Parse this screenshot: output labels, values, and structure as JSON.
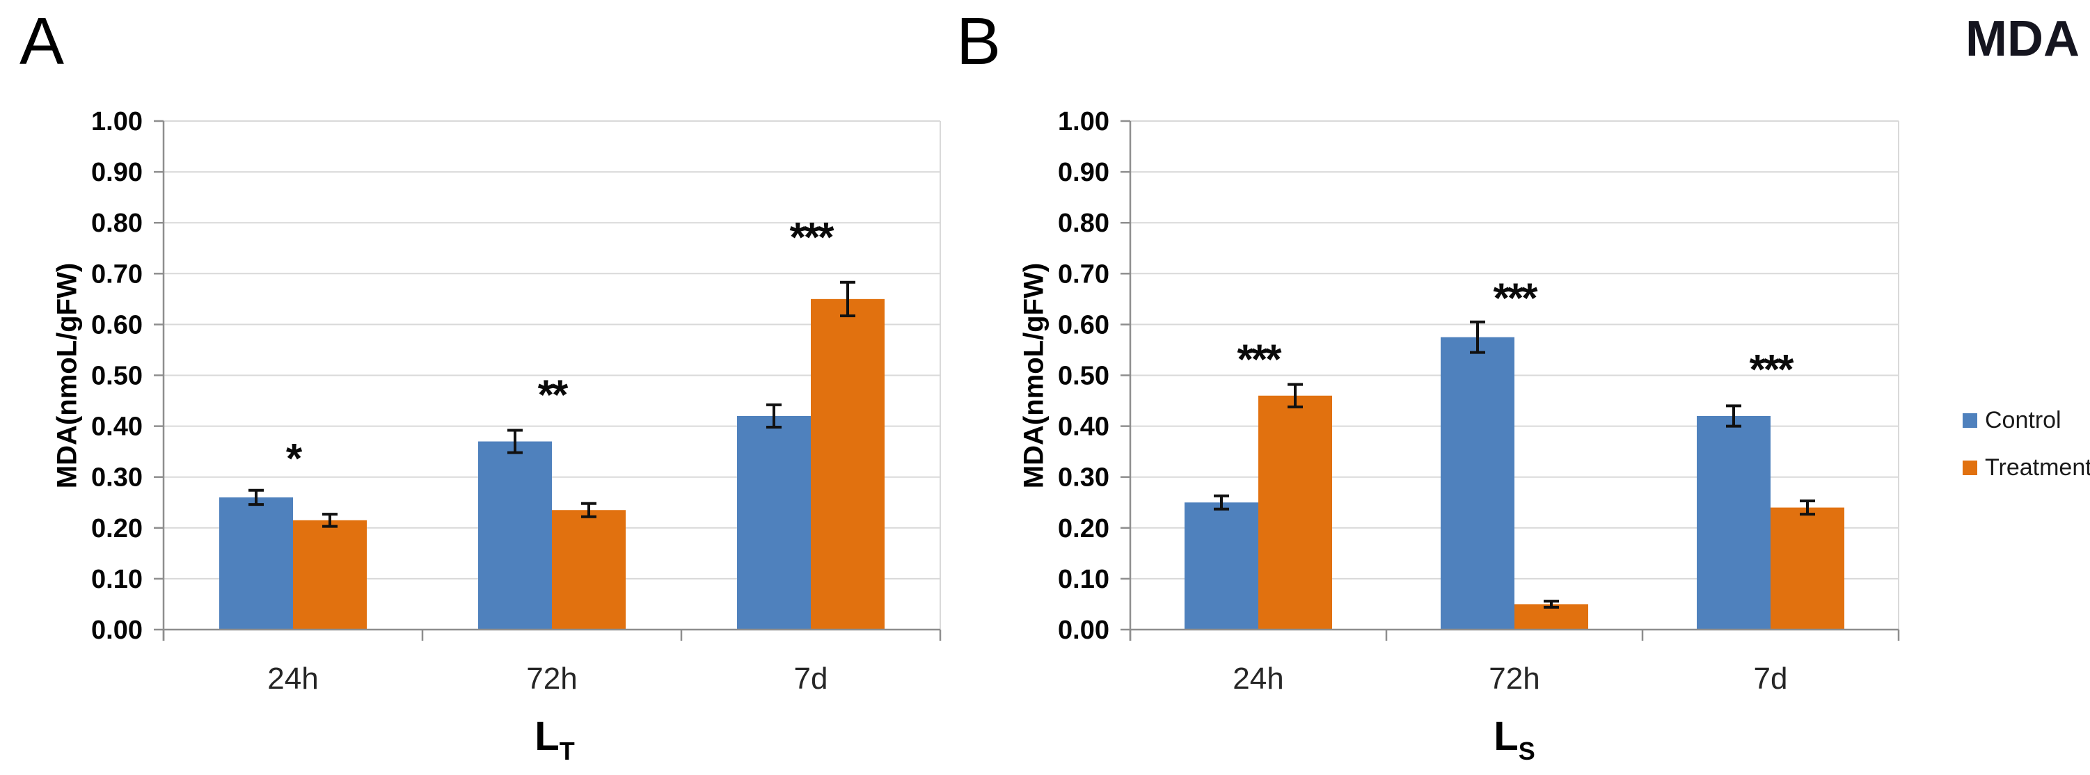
{
  "title": "MDA",
  "legend": {
    "position": "right",
    "items": [
      {
        "label": "Control",
        "color": "#4F81BD"
      },
      {
        "label": "Treatment",
        "color": "#E1710F"
      }
    ]
  },
  "style": {
    "background": "#FFFFFF",
    "grid_color": "#D9D9D9",
    "axis_color": "#8E8E8E",
    "error_bar_color": "#111111",
    "tick_label_color": "#050505",
    "category_label_color": "#262626",
    "star_color": "#0A0A0A"
  },
  "chart_data": [
    {
      "panel": "A",
      "type": "bar",
      "categories": [
        "24h",
        "72h",
        "7d"
      ],
      "series": [
        {
          "name": "Control",
          "color": "#4F81BD",
          "values": [
            0.26,
            0.37,
            0.42
          ],
          "errors": [
            0.014,
            0.022,
            0.022
          ]
        },
        {
          "name": "Treatment",
          "color": "#E1710F",
          "values": [
            0.215,
            0.235,
            0.65
          ],
          "errors": [
            0.012,
            0.013,
            0.033
          ]
        }
      ],
      "significance": [
        {
          "category": "24h",
          "label": "*",
          "y": 0.355
        },
        {
          "category": "72h",
          "label": "**",
          "y": 0.48
        },
        {
          "category": "7d",
          "label": "***",
          "y": 0.79
        }
      ],
      "ylabel": "MDA(nmoL/gFW)",
      "xlabel_main": "L",
      "xlabel_sub": "T",
      "ylim": [
        0.0,
        1.0
      ],
      "ytick_step": 0.1,
      "ytick_labels": [
        "0.00",
        "0.10",
        "0.20",
        "0.30",
        "0.40",
        "0.50",
        "0.60",
        "0.70",
        "0.80",
        "0.90",
        "1.00"
      ],
      "grid": true
    },
    {
      "panel": "B",
      "type": "bar",
      "categories": [
        "24h",
        "72h",
        "7d"
      ],
      "series": [
        {
          "name": "Control",
          "color": "#4F81BD",
          "values": [
            0.25,
            0.575,
            0.42
          ],
          "errors": [
            0.013,
            0.03,
            0.02
          ]
        },
        {
          "name": "Treatment",
          "color": "#E1710F",
          "values": [
            0.46,
            0.05,
            0.24
          ],
          "errors": [
            0.022,
            0.006,
            0.013
          ]
        }
      ],
      "significance": [
        {
          "category": "24h",
          "label": "***",
          "y": 0.55
        },
        {
          "category": "72h",
          "label": "***",
          "y": 0.67
        },
        {
          "category": "7d",
          "label": "***",
          "y": 0.53
        }
      ],
      "ylabel": "MDA(nmoL/gFW)",
      "xlabel_main": "L",
      "xlabel_sub": "S",
      "ylim": [
        0.0,
        1.0
      ],
      "ytick_step": 0.1,
      "ytick_labels": [
        "0.00",
        "0.10",
        "0.20",
        "0.30",
        "0.40",
        "0.50",
        "0.60",
        "0.70",
        "0.80",
        "0.90",
        "1.00"
      ],
      "grid": true
    }
  ]
}
